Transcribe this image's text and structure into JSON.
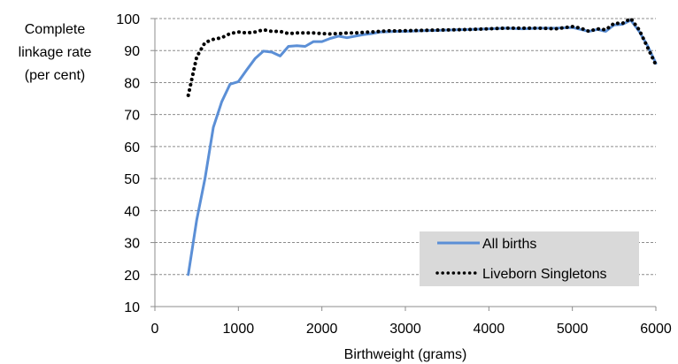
{
  "chart_data": {
    "type": "line",
    "title": "",
    "ylabel_lines": [
      "Complete",
      "linkage rate",
      "(per cent)"
    ],
    "xlabel": "Birthweight (grams)",
    "xlim": [
      0,
      6000
    ],
    "ylim": [
      10,
      100
    ],
    "x_ticks": [
      0,
      1000,
      2000,
      3000,
      4000,
      5000,
      6000
    ],
    "y_ticks": [
      10,
      20,
      30,
      40,
      50,
      60,
      70,
      80,
      90,
      100
    ],
    "grid": "horizontal dashed",
    "legend_position": "bottom-right",
    "series": [
      {
        "name": "All births",
        "color": "#5b8fd6",
        "style": "solid",
        "points": [
          [
            400,
            20
          ],
          [
            500,
            37
          ],
          [
            600,
            50
          ],
          [
            700,
            66
          ],
          [
            800,
            74
          ],
          [
            900,
            79.5
          ],
          [
            1000,
            80.3
          ],
          [
            1100,
            84
          ],
          [
            1200,
            87.5
          ],
          [
            1300,
            89.8
          ],
          [
            1400,
            89.5
          ],
          [
            1500,
            88.3
          ],
          [
            1600,
            91.3
          ],
          [
            1700,
            91.5
          ],
          [
            1800,
            91.3
          ],
          [
            1900,
            92.8
          ],
          [
            2000,
            92.8
          ],
          [
            2100,
            93.8
          ],
          [
            2200,
            94.5
          ],
          [
            2300,
            94
          ],
          [
            2400,
            94.5
          ],
          [
            2500,
            95
          ],
          [
            2600,
            95.3
          ],
          [
            2700,
            95.8
          ],
          [
            2800,
            95.9
          ],
          [
            2900,
            96
          ],
          [
            3000,
            96
          ],
          [
            3200,
            96.2
          ],
          [
            3400,
            96.3
          ],
          [
            3600,
            96.5
          ],
          [
            3800,
            96.6
          ],
          [
            4000,
            96.8
          ],
          [
            4200,
            97
          ],
          [
            4400,
            96.8
          ],
          [
            4600,
            97
          ],
          [
            4800,
            97
          ],
          [
            5000,
            97.2
          ],
          [
            5100,
            96.6
          ],
          [
            5200,
            96
          ],
          [
            5300,
            96.6
          ],
          [
            5400,
            96
          ],
          [
            5500,
            98
          ],
          [
            5600,
            98.2
          ],
          [
            5700,
            99.5
          ],
          [
            5800,
            96
          ],
          [
            5900,
            91.5
          ],
          [
            6000,
            86
          ]
        ]
      },
      {
        "name": "Liveborn Singletons",
        "color": "#000000",
        "style": "dotted",
        "points": [
          [
            400,
            76
          ],
          [
            500,
            88
          ],
          [
            600,
            92.5
          ],
          [
            700,
            93.5
          ],
          [
            800,
            94
          ],
          [
            900,
            95.3
          ],
          [
            1000,
            95.8
          ],
          [
            1100,
            95.5
          ],
          [
            1200,
            95.8
          ],
          [
            1300,
            96.5
          ],
          [
            1400,
            96
          ],
          [
            1500,
            96
          ],
          [
            1600,
            95.3
          ],
          [
            1700,
            95.5
          ],
          [
            1800,
            95.5
          ],
          [
            1900,
            95.5
          ],
          [
            2000,
            95.3
          ],
          [
            2100,
            95.2
          ],
          [
            2200,
            95.3
          ],
          [
            2300,
            95.5
          ],
          [
            2400,
            95.5
          ],
          [
            2500,
            95.7
          ],
          [
            2600,
            95.8
          ],
          [
            2700,
            96
          ],
          [
            2800,
            96.2
          ],
          [
            2900,
            96.1
          ],
          [
            3000,
            96.2
          ],
          [
            3200,
            96.3
          ],
          [
            3400,
            96.4
          ],
          [
            3600,
            96.5
          ],
          [
            3800,
            96.6
          ],
          [
            4000,
            96.8
          ],
          [
            4200,
            97
          ],
          [
            4400,
            97
          ],
          [
            4600,
            97
          ],
          [
            4800,
            96.8
          ],
          [
            5000,
            97.5
          ],
          [
            5100,
            97
          ],
          [
            5200,
            96
          ],
          [
            5300,
            96.8
          ],
          [
            5400,
            96.5
          ],
          [
            5500,
            98.5
          ],
          [
            5600,
            98.5
          ],
          [
            5700,
            100
          ],
          [
            5800,
            96.5
          ],
          [
            5900,
            91
          ],
          [
            6000,
            85.5
          ]
        ]
      }
    ]
  }
}
